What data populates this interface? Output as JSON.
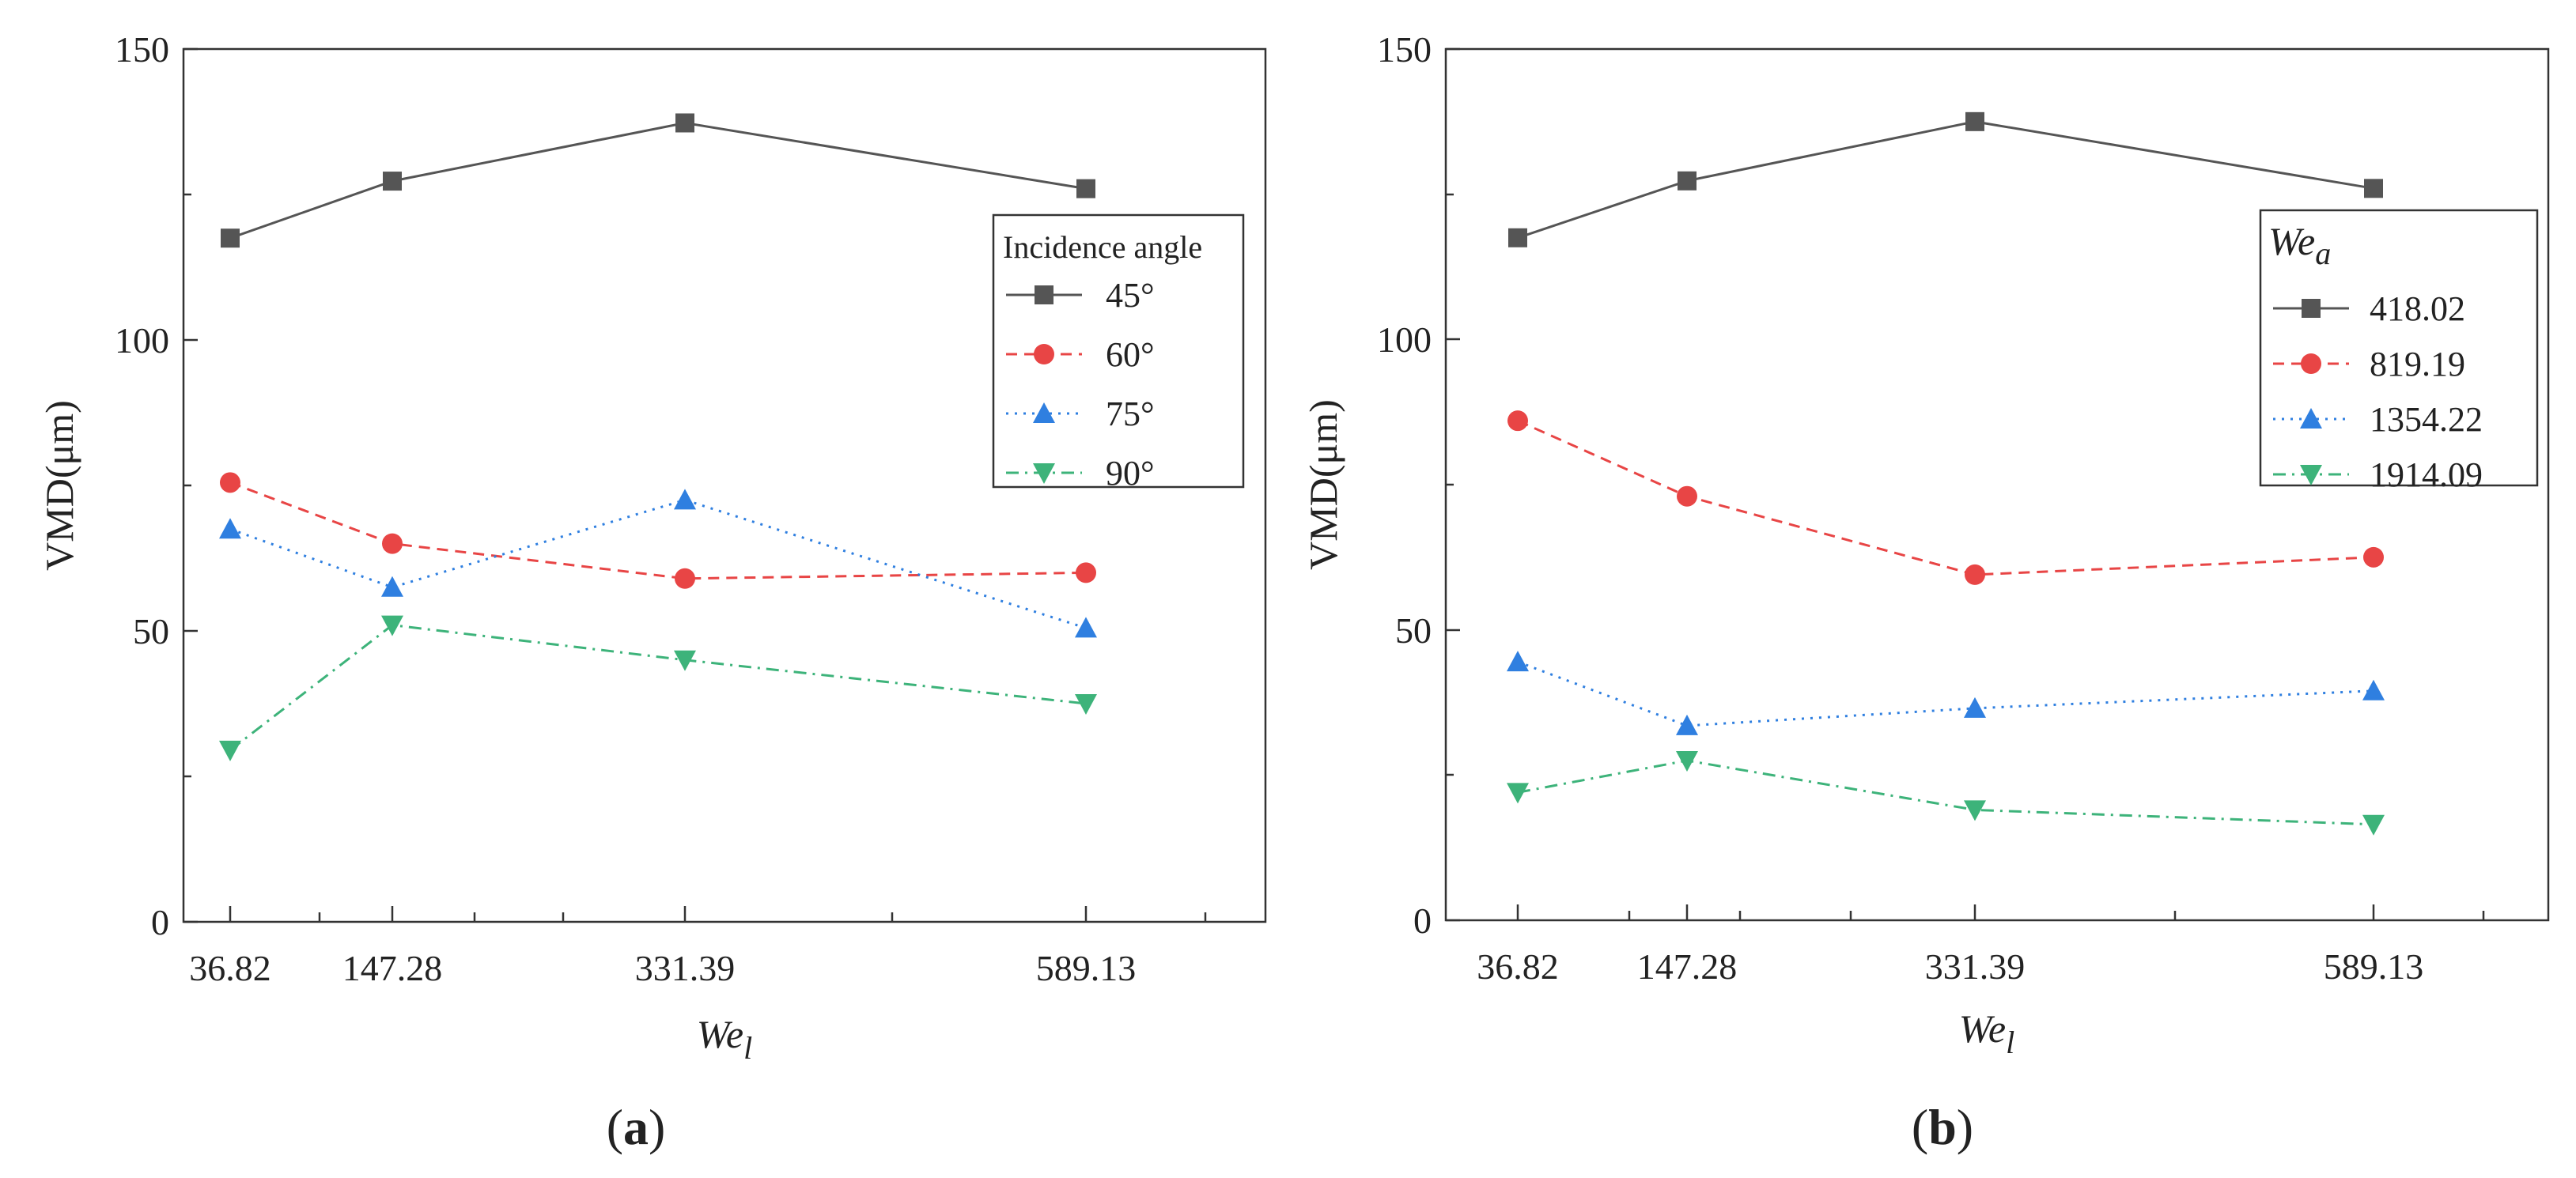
{
  "figure": {
    "captions": [
      {
        "open": "(",
        "letter": "a",
        "close": ")"
      },
      {
        "open": "(",
        "letter": "b",
        "close": ")"
      }
    ]
  },
  "chart_data": [
    {
      "type": "line",
      "panel": "a",
      "xlabel": {
        "base": "We",
        "sub": "l"
      },
      "ylabel": "VMD(μm)",
      "categories": [
        "36.82",
        "147.28",
        "331.39",
        "589.13"
      ],
      "x": [
        36.82,
        147.28,
        331.39,
        589.13
      ],
      "xlim": [
        0,
        700
      ],
      "ylim": [
        0,
        150
      ],
      "yticks": [
        0,
        50,
        100,
        150
      ],
      "legend": {
        "title": "Incidence angle",
        "title_italic_sub": null,
        "placement": "upper-right"
      },
      "series": [
        {
          "name": "45°",
          "color": "#555555",
          "dash": "solid",
          "marker": "square",
          "values": [
            117.5,
            127.3,
            137.3,
            126.0
          ]
        },
        {
          "name": "60°",
          "color": "#e84545",
          "dash": "dashed",
          "marker": "circle",
          "values": [
            75.5,
            65.0,
            59.0,
            60.0
          ]
        },
        {
          "name": "75°",
          "color": "#2f7fe0",
          "dash": "dotted",
          "marker": "triangle-up",
          "values": [
            67.5,
            57.5,
            72.5,
            50.5
          ]
        },
        {
          "name": "90°",
          "color": "#3db37a",
          "dash": "dashdot",
          "marker": "triangle-down",
          "values": [
            29.5,
            51.0,
            45.0,
            37.5
          ]
        }
      ]
    },
    {
      "type": "line",
      "panel": "b",
      "xlabel": {
        "base": "We",
        "sub": "l"
      },
      "ylabel": "VMD(μm)",
      "categories": [
        "36.82",
        "147.28",
        "331.39",
        "589.13"
      ],
      "x": [
        36.82,
        147.28,
        331.39,
        589.13
      ],
      "xlim": [
        0,
        700
      ],
      "ylim": [
        0,
        150
      ],
      "yticks": [
        0,
        50,
        100,
        150
      ],
      "legend": {
        "title": "We",
        "title_sub": "a",
        "placement": "upper-right"
      },
      "series": [
        {
          "name": "418.02",
          "color": "#555555",
          "dash": "solid",
          "marker": "square",
          "values": [
            117.5,
            127.3,
            137.5,
            126.0
          ]
        },
        {
          "name": "819.19",
          "color": "#e84545",
          "dash": "dashed",
          "marker": "circle",
          "values": [
            86.0,
            73.0,
            59.5,
            62.5
          ]
        },
        {
          "name": "1354.22",
          "color": "#2f7fe0",
          "dash": "dotted",
          "marker": "triangle-up",
          "values": [
            44.5,
            33.5,
            36.5,
            39.5
          ]
        },
        {
          "name": "1914.09",
          "color": "#3db37a",
          "dash": "dashdot",
          "marker": "triangle-down",
          "values": [
            22.0,
            27.5,
            19.0,
            16.5
          ]
        }
      ]
    }
  ]
}
